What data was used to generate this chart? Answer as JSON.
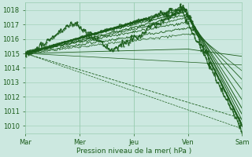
{
  "bg_color": "#cce8e0",
  "grid_color": "#99ccb0",
  "line_color": "#1a5c1a",
  "xlabel": "Pression niveau de la mer( hPa )",
  "ylim": [
    1009.5,
    1018.5
  ],
  "yticks": [
    1010,
    1011,
    1012,
    1013,
    1014,
    1015,
    1016,
    1017,
    1018
  ],
  "day_labels": [
    "Mar",
    "Mer",
    "Jeu",
    "Ven",
    "Sam"
  ],
  "day_positions": [
    0,
    0.25,
    0.5,
    0.75,
    1.0
  ],
  "n_steps": 240
}
